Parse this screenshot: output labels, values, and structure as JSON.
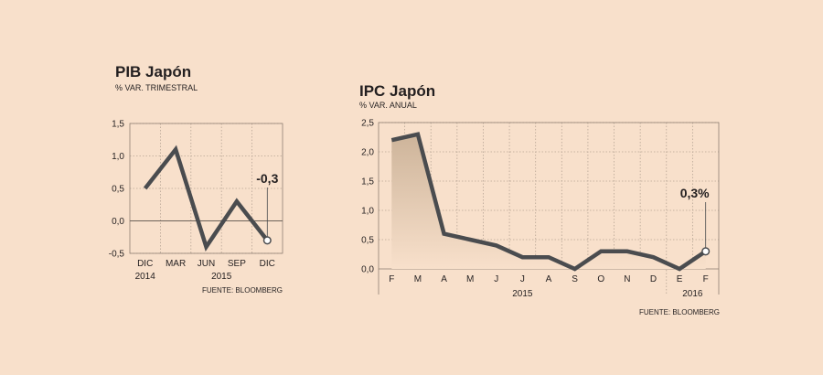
{
  "colors": {
    "background": "#f8e0cb",
    "line": "#4a4c4f",
    "area_top": "#cdb49a",
    "area_bottom": "#f8e0cb"
  },
  "chart_data": [
    {
      "type": "line",
      "title": "PIB Japón",
      "subtitle": "% VAR. TRIMESTRAL",
      "source": "FUENTE: BLOOMBERG",
      "categories": [
        "DIC",
        "MAR",
        "JUN",
        "SEP",
        "DIC"
      ],
      "year_labels": [
        {
          "label": "2014",
          "under": 0
        },
        {
          "label": "2015",
          "under": 2.5
        }
      ],
      "values": [
        0.5,
        1.1,
        -0.4,
        0.3,
        -0.3
      ],
      "yticks": [
        "1,5",
        "1,0",
        "0,5",
        "0,0",
        "-0,5"
      ],
      "ylim": [
        -0.5,
        1.5
      ],
      "callout": "-0,3",
      "grid": true
    },
    {
      "type": "area",
      "title": "IPC Japón",
      "subtitle": "% VAR. ANUAL",
      "source": "FUENTE: BLOOMBERG",
      "categories": [
        "F",
        "M",
        "A",
        "M",
        "J",
        "J",
        "A",
        "S",
        "O",
        "N",
        "D",
        "E",
        "F"
      ],
      "year_labels": [
        {
          "label": "2015",
          "under": 5
        },
        {
          "label": "2016",
          "under": 11.5
        }
      ],
      "year_break_after": 10,
      "values": [
        2.2,
        2.3,
        0.6,
        0.5,
        0.4,
        0.2,
        0.2,
        0.0,
        0.3,
        0.3,
        0.2,
        0.0,
        0.3
      ],
      "yticks": [
        "2,5",
        "2,0",
        "1,5",
        "1,0",
        "0,5",
        "0,0"
      ],
      "ylim": [
        0,
        2.5
      ],
      "callout": "0,3%",
      "grid": true
    }
  ]
}
